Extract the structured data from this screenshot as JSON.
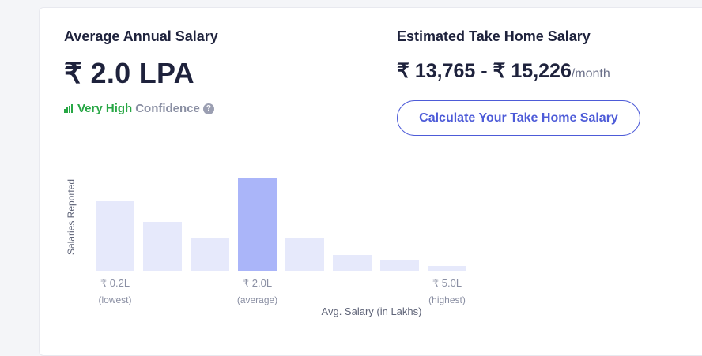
{
  "left": {
    "title": "Average Annual Salary",
    "salary": "₹ 2.0 LPA",
    "confidence_level": "Very High",
    "confidence_word": "Confidence",
    "help_glyph": "?"
  },
  "right": {
    "title": "Estimated Take Home Salary",
    "range": "₹ 13,765 - ₹ 15,226",
    "unit": "/month",
    "button_label": "Calculate Your Take Home Salary"
  },
  "colors": {
    "accent": "#4d5bd8",
    "confidence_green": "#28a745",
    "bar": "#e6e9fb",
    "bar_highlight": "#aab5f9"
  },
  "chart_data": {
    "type": "bar",
    "ylabel": "Salaries Reported",
    "xlabel": "Avg. Salary (in Lakhs)",
    "values": [
      88,
      62,
      42,
      117,
      41,
      20,
      13,
      6
    ],
    "highlight_index": 3,
    "tick_labels": [
      {
        "index": 0,
        "value": "₹ 0.2L",
        "note": "(lowest)"
      },
      {
        "index": 3,
        "value": "₹ 2.0L",
        "note": "(average)"
      },
      {
        "index": 7,
        "value": "₹ 5.0L",
        "note": "(highest)"
      }
    ]
  }
}
